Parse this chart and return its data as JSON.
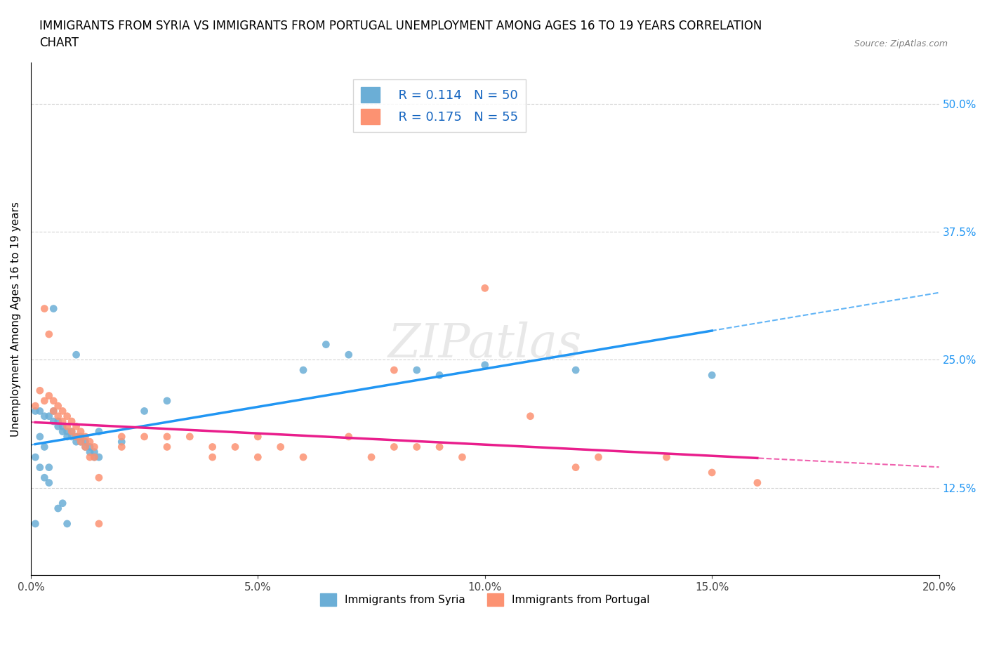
{
  "title": "IMMIGRANTS FROM SYRIA VS IMMIGRANTS FROM PORTUGAL UNEMPLOYMENT AMONG AGES 16 TO 19 YEARS CORRELATION\nCHART",
  "source_text": "Source: ZipAtlas.com",
  "xlabel": "",
  "ylabel": "Unemployment Among Ages 16 to 19 years",
  "xlim": [
    0.0,
    0.2
  ],
  "ylim": [
    0.04,
    0.54
  ],
  "xticks": [
    0.0,
    0.05,
    0.1,
    0.15,
    0.2
  ],
  "xtick_labels": [
    "0.0%",
    "5.0%",
    "10.0%",
    "15.0%",
    "20.0%"
  ],
  "yticks": [
    0.125,
    0.25,
    0.375,
    0.5
  ],
  "ytick_labels": [
    "12.5%",
    "25.0%",
    "37.5%",
    "50.0%"
  ],
  "syria_color": "#6baed6",
  "portugal_color": "#fc9272",
  "syria_R": 0.114,
  "syria_N": 50,
  "portugal_R": 0.175,
  "portugal_N": 55,
  "watermark": "ZIPatlas",
  "syria_scatter": [
    [
      0.001,
      0.2
    ],
    [
      0.002,
      0.2
    ],
    [
      0.003,
      0.195
    ],
    [
      0.004,
      0.195
    ],
    [
      0.005,
      0.2
    ],
    [
      0.005,
      0.19
    ],
    [
      0.006,
      0.19
    ],
    [
      0.006,
      0.185
    ],
    [
      0.007,
      0.185
    ],
    [
      0.007,
      0.18
    ],
    [
      0.008,
      0.18
    ],
    [
      0.008,
      0.175
    ],
    [
      0.009,
      0.18
    ],
    [
      0.009,
      0.175
    ],
    [
      0.01,
      0.175
    ],
    [
      0.01,
      0.17
    ],
    [
      0.011,
      0.175
    ],
    [
      0.011,
      0.17
    ],
    [
      0.012,
      0.17
    ],
    [
      0.012,
      0.165
    ],
    [
      0.013,
      0.165
    ],
    [
      0.013,
      0.16
    ],
    [
      0.014,
      0.16
    ],
    [
      0.014,
      0.155
    ],
    [
      0.015,
      0.155
    ],
    [
      0.005,
      0.3
    ],
    [
      0.01,
      0.255
    ],
    [
      0.02,
      0.17
    ],
    [
      0.025,
      0.2
    ],
    [
      0.03,
      0.21
    ],
    [
      0.002,
      0.175
    ],
    [
      0.003,
      0.165
    ],
    [
      0.015,
      0.18
    ],
    [
      0.001,
      0.155
    ],
    [
      0.002,
      0.145
    ],
    [
      0.003,
      0.135
    ],
    [
      0.004,
      0.145
    ],
    [
      0.004,
      0.13
    ],
    [
      0.006,
      0.105
    ],
    [
      0.007,
      0.11
    ],
    [
      0.008,
      0.09
    ],
    [
      0.001,
      0.09
    ],
    [
      0.06,
      0.24
    ],
    [
      0.065,
      0.265
    ],
    [
      0.07,
      0.255
    ],
    [
      0.085,
      0.24
    ],
    [
      0.09,
      0.235
    ],
    [
      0.1,
      0.245
    ],
    [
      0.12,
      0.24
    ],
    [
      0.15,
      0.235
    ]
  ],
  "portugal_scatter": [
    [
      0.001,
      0.205
    ],
    [
      0.002,
      0.22
    ],
    [
      0.003,
      0.21
    ],
    [
      0.004,
      0.215
    ],
    [
      0.005,
      0.21
    ],
    [
      0.005,
      0.2
    ],
    [
      0.006,
      0.205
    ],
    [
      0.006,
      0.195
    ],
    [
      0.007,
      0.2
    ],
    [
      0.007,
      0.19
    ],
    [
      0.008,
      0.195
    ],
    [
      0.008,
      0.185
    ],
    [
      0.009,
      0.19
    ],
    [
      0.009,
      0.18
    ],
    [
      0.01,
      0.185
    ],
    [
      0.01,
      0.175
    ],
    [
      0.011,
      0.18
    ],
    [
      0.011,
      0.17
    ],
    [
      0.012,
      0.175
    ],
    [
      0.012,
      0.165
    ],
    [
      0.013,
      0.17
    ],
    [
      0.013,
      0.155
    ],
    [
      0.014,
      0.165
    ],
    [
      0.014,
      0.155
    ],
    [
      0.015,
      0.135
    ],
    [
      0.015,
      0.09
    ],
    [
      0.003,
      0.3
    ],
    [
      0.004,
      0.275
    ],
    [
      0.02,
      0.175
    ],
    [
      0.02,
      0.165
    ],
    [
      0.025,
      0.175
    ],
    [
      0.03,
      0.175
    ],
    [
      0.035,
      0.175
    ],
    [
      0.03,
      0.165
    ],
    [
      0.04,
      0.165
    ],
    [
      0.04,
      0.155
    ],
    [
      0.045,
      0.165
    ],
    [
      0.05,
      0.155
    ],
    [
      0.05,
      0.175
    ],
    [
      0.055,
      0.165
    ],
    [
      0.06,
      0.155
    ],
    [
      0.07,
      0.175
    ],
    [
      0.075,
      0.155
    ],
    [
      0.08,
      0.165
    ],
    [
      0.08,
      0.24
    ],
    [
      0.085,
      0.165
    ],
    [
      0.09,
      0.165
    ],
    [
      0.095,
      0.155
    ],
    [
      0.1,
      0.32
    ],
    [
      0.11,
      0.195
    ],
    [
      0.12,
      0.145
    ],
    [
      0.125,
      0.155
    ],
    [
      0.14,
      0.155
    ],
    [
      0.15,
      0.14
    ],
    [
      0.16,
      0.13
    ]
  ]
}
